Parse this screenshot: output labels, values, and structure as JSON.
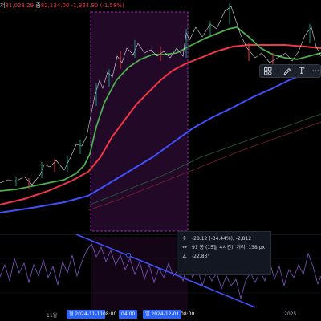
{
  "header": {
    "ohlc_prefix": "저",
    "low": "81,023.29",
    "close_label": "종",
    "close": "82,134.00",
    "change": "-1,324.90 (-1.58%)"
  },
  "drawing_toolbar": {
    "items": [
      {
        "name": "tools-icon"
      },
      {
        "name": "pencil-icon"
      },
      {
        "name": "text-icon",
        "label": "T"
      },
      {
        "name": "more-icon"
      }
    ]
  },
  "measure_info": {
    "price_change": "-28.12 (-34.44%), -2,812",
    "bars": "91 봉 (15달 4시간), 거리: 158 px",
    "angle": "-22.83°"
  },
  "x_axis": {
    "labels": [
      {
        "text": "11월"
      },
      {
        "text": "2025"
      }
    ],
    "badges": [
      {
        "text": "월 2024-11-11",
        "type": "primary"
      },
      {
        "text": "08:00",
        "type": "secondary"
      },
      {
        "text": "04:00",
        "type": "primary"
      },
      {
        "text": "일 2024-12-01",
        "type": "primary"
      },
      {
        "text": "08:00",
        "type": "secondary"
      }
    ]
  },
  "colors": {
    "background": "#000000",
    "selection": "#9c27b0",
    "ma_green": "#4caf50",
    "ma_red": "#f23645",
    "ma_blue": "#3f51ff",
    "oscillator": "#7e57c2",
    "trendline": "#3f51ff"
  }
}
